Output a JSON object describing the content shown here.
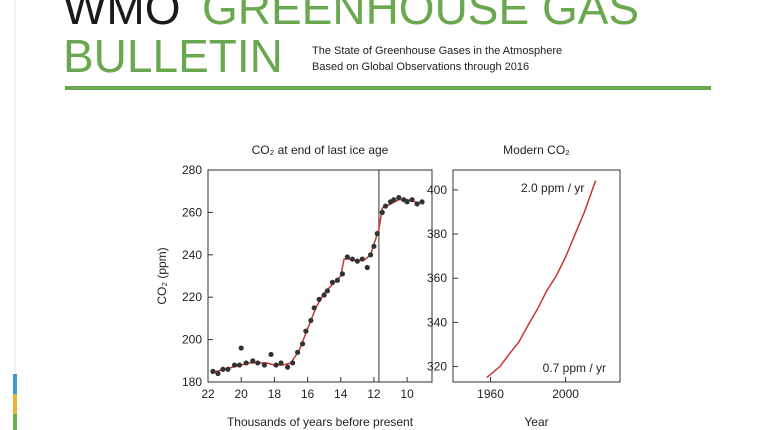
{
  "header": {
    "title_black": "WMO",
    "title_green": "GREENHOUSE GAS",
    "title_line2": "BULLETIN",
    "subtitle": [
      "The State of Greenhouse Gases in the Atmosphere",
      "Based on Global Observations through 2016"
    ]
  },
  "chart_data": [
    {
      "type": "line",
      "title": "CO₂ at end of last ice age",
      "y_label": "CO₂ (ppm)",
      "x_label": "Thousands of years before present",
      "xlim": [
        22,
        8.5
      ],
      "ylim": [
        180,
        280
      ],
      "xticks": [
        22,
        20,
        18,
        16,
        14,
        12,
        10
      ],
      "yticks": [
        180,
        200,
        220,
        240,
        260,
        280
      ],
      "divider_x": 11.7,
      "series": [
        {
          "style": "line",
          "color": "#c8372d",
          "x": [
            21.8,
            21.5,
            21,
            20.5,
            20,
            19.5,
            19,
            18.5,
            18,
            17.5,
            17,
            16.5,
            16,
            15.5,
            15,
            14.5,
            14,
            13.8,
            13.5,
            13,
            12.5,
            12.2,
            12,
            11.7,
            11.5,
            11,
            10.5,
            10,
            9.5,
            9
          ],
          "values": [
            184,
            185,
            186,
            187,
            188,
            189,
            189,
            189,
            188,
            188,
            189,
            195,
            205,
            215,
            222,
            226,
            230,
            238,
            238,
            237,
            238,
            240,
            245,
            252,
            262,
            264,
            266,
            266,
            265,
            264
          ]
        },
        {
          "style": "markers",
          "color": "#333333",
          "x": [
            21.7,
            21.4,
            21.1,
            20.8,
            20.4,
            20.1,
            20.0,
            19.7,
            19.3,
            19.0,
            18.6,
            18.2,
            17.9,
            17.6,
            17.2,
            16.9,
            16.6,
            16.3,
            16.1,
            15.8,
            15.6,
            15.3,
            15.0,
            14.8,
            14.5,
            14.2,
            13.9,
            13.6,
            13.3,
            13.0,
            12.7,
            12.4,
            12.2,
            12.0,
            11.8,
            11.5,
            11.3,
            11.0,
            10.8,
            10.5,
            10.2,
            10.0,
            9.7,
            9.4,
            9.1
          ],
          "values": [
            185,
            184,
            186,
            186,
            188,
            188,
            196,
            189,
            190,
            189,
            188,
            193,
            188,
            189,
            187,
            189,
            194,
            198,
            204,
            209,
            215,
            219,
            221,
            223,
            227,
            228,
            231,
            239,
            238,
            237,
            238,
            234,
            240,
            244,
            250,
            260,
            263,
            265,
            266,
            267,
            266,
            265,
            266,
            264,
            265
          ]
        }
      ]
    },
    {
      "type": "line",
      "title": "Modern CO₂",
      "x_label": "Year",
      "xlim": [
        1940,
        2029
      ],
      "ylim": [
        313,
        409
      ],
      "xticks": [
        1960,
        2000
      ],
      "yticks": [
        320,
        340,
        360,
        380,
        400
      ],
      "annotations": [
        "2.0 ppm / yr",
        "0.7 ppm / yr"
      ],
      "series": [
        {
          "style": "line",
          "color": "#c8372d",
          "x": [
            1958,
            1965,
            1970,
            1975,
            1980,
            1985,
            1990,
            1995,
            2000,
            2005,
            2010,
            2016
          ],
          "values": [
            315,
            320,
            325.7,
            331,
            338.7,
            346,
            354.4,
            361,
            369.6,
            379.8,
            389.9,
            404.2
          ]
        }
      ]
    }
  ]
}
